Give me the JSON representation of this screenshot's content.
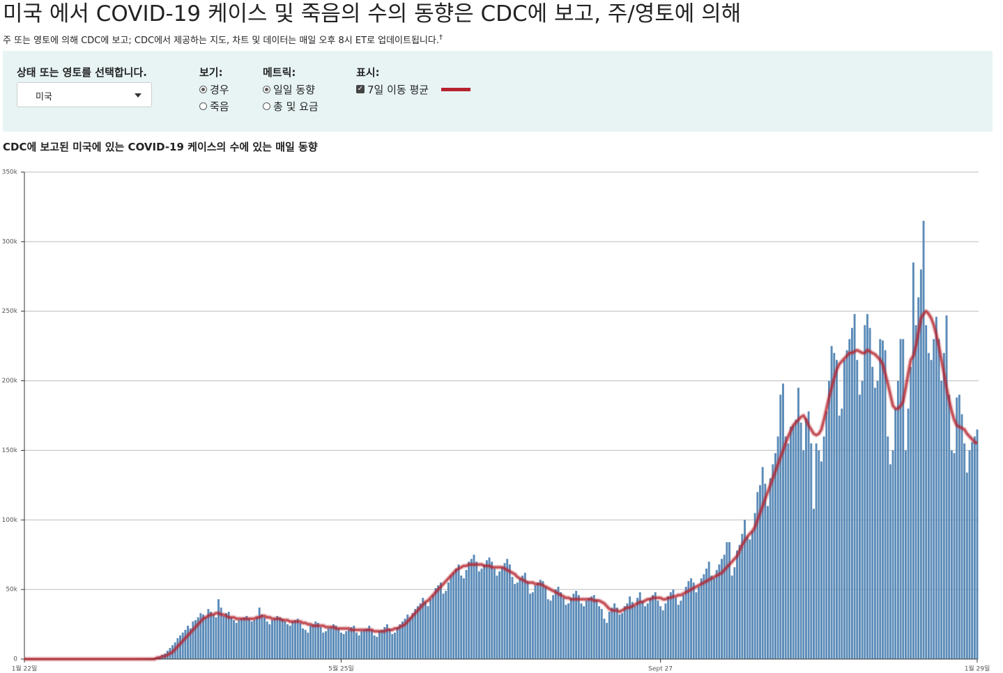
{
  "header": {
    "title": "미국 에서 COVID-19 케이스 및 죽음의 수의 동향은 CDC에 보고, 주/영토에 의해",
    "subtitle": "주 또는 영토에 의해 CDC에 보고; CDC에서 제공하는 지도, 차트 및 데이터는 매일 오후 8시 ET로 업데이트됩니다.",
    "dagger": "†"
  },
  "controls": {
    "region_label": "상태 또는 영토를 선택합니다.",
    "region_value": "미국",
    "view_label": "보기:",
    "view_options": [
      "경우",
      "죽음"
    ],
    "metric_label": "메트릭:",
    "metric_options": [
      "일일 동향",
      "총 및 요금"
    ],
    "display_label": "표시:"
  },
  "chart_data": {
    "type": "bar",
    "title": "CDC에 보고된 미국에 있는 COVID-19 케이스의 수에 있는 매일 동향",
    "color": "#5b8bb8",
    "categories": [
      "1월 22일",
      null,
      null,
      null,
      null,
      null,
      null,
      null,
      null,
      null,
      null,
      null,
      null,
      null,
      null,
      null,
      null,
      null,
      null,
      null,
      null,
      null,
      null,
      null,
      null,
      null,
      null,
      null,
      null,
      null,
      null,
      null,
      null,
      null,
      null,
      null,
      null,
      null,
      null,
      null,
      null,
      null,
      null,
      null,
      null,
      null,
      null,
      null,
      null,
      null,
      null,
      null,
      null,
      null,
      null,
      null,
      null,
      null,
      null,
      null,
      null,
      null,
      null,
      null,
      null,
      null,
      null,
      null,
      null,
      null,
      null,
      null,
      null,
      null,
      null,
      null,
      null,
      null,
      null,
      null,
      null,
      null,
      null,
      null,
      null,
      null,
      null,
      null,
      null,
      null,
      null,
      null,
      null,
      null,
      null,
      null,
      null,
      null,
      null,
      null,
      null,
      null,
      null,
      null,
      null,
      null,
      null,
      null,
      null,
      null,
      null,
      null,
      null,
      null,
      null,
      null,
      null,
      null,
      null,
      null,
      null,
      null,
      null,
      null,
      "5월 25일",
      null,
      null,
      null,
      null,
      null,
      null,
      null,
      null,
      null,
      null,
      null,
      null,
      null,
      null,
      null,
      null,
      null,
      null,
      null,
      null,
      null,
      null,
      null,
      null,
      null,
      null,
      null,
      null,
      null,
      null,
      null,
      null,
      null,
      null,
      null,
      null,
      null,
      null,
      null,
      null,
      null,
      null,
      null,
      null,
      null,
      null,
      null,
      null,
      null,
      null,
      null,
      null,
      null,
      null,
      null,
      null,
      null,
      null,
      null,
      null,
      null,
      null,
      null,
      null,
      null,
      null,
      null,
      null,
      null,
      null,
      null,
      null,
      null,
      null,
      null,
      null,
      null,
      null,
      null,
      null,
      null,
      null,
      null,
      null,
      null,
      null,
      null,
      null,
      null,
      null,
      null,
      null,
      null,
      null,
      null,
      null,
      null,
      null,
      null,
      null,
      null,
      null,
      null,
      null,
      null,
      null,
      null,
      null,
      null,
      null,
      null,
      null,
      null,
      null,
      null,
      null,
      null,
      null,
      null,
      null,
      null,
      null,
      null,
      null,
      "Sept 27",
      null,
      null,
      null,
      null,
      null,
      null,
      null,
      null,
      null,
      null,
      null,
      null,
      null,
      null,
      null,
      null,
      null,
      null,
      null,
      null,
      null,
      null,
      null,
      null,
      null,
      null,
      null,
      null,
      null,
      null,
      null,
      null,
      null,
      null,
      null,
      null,
      null,
      null,
      null,
      null,
      null,
      null,
      null,
      null,
      null,
      null,
      null,
      null,
      null,
      null,
      null,
      null,
      null,
      null,
      null,
      null,
      null,
      null,
      null,
      null,
      null,
      null,
      null,
      null,
      null,
      null,
      null,
      null,
      null,
      null,
      null,
      null,
      null,
      null,
      null,
      null,
      null,
      null,
      null,
      null,
      null,
      null,
      null,
      null,
      null,
      null,
      null,
      null,
      null,
      null,
      null,
      null,
      null,
      null,
      null,
      null,
      null,
      null,
      null,
      null,
      null,
      null,
      null,
      null,
      null,
      null,
      null,
      null,
      null,
      null,
      null,
      null,
      null,
      null,
      null,
      null,
      null,
      null,
      null,
      null,
      null,
      null,
      null,
      "1월 29일"
    ],
    "values": [
      0,
      0,
      0,
      0,
      0,
      0,
      0,
      0,
      0,
      0,
      0,
      0,
      0,
      0,
      0,
      0,
      0,
      0,
      0,
      0,
      0,
      0,
      0,
      0,
      0,
      0,
      0,
      0,
      0,
      0,
      0,
      0,
      0,
      0,
      0,
      0,
      0,
      0,
      0,
      0,
      0,
      0,
      0,
      0,
      100,
      200,
      300,
      400,
      500,
      600,
      700,
      1000,
      1500,
      2000,
      3000,
      4000,
      6000,
      8000,
      10000,
      12000,
      15000,
      17000,
      19000,
      21000,
      24000,
      22000,
      27000,
      28000,
      30000,
      33000,
      32000,
      30000,
      36000,
      34000,
      32000,
      30000,
      43000,
      37000,
      31000,
      33000,
      34000,
      30000,
      28000,
      26000,
      28000,
      29000,
      30000,
      31000,
      29000,
      27000,
      28000,
      30000,
      37000,
      32000,
      30000,
      27000,
      25000,
      28000,
      29000,
      31000,
      30000,
      29000,
      27000,
      25000,
      24000,
      27000,
      28000,
      29000,
      26000,
      22000,
      21000,
      19000,
      24000,
      25000,
      27000,
      26000,
      23000,
      19000,
      20000,
      22000,
      23000,
      25000,
      24000,
      22000,
      19000,
      18000,
      20000,
      21000,
      23000,
      24000,
      19000,
      17000,
      20000,
      21000,
      22000,
      24000,
      21000,
      17000,
      16000,
      20000,
      21000,
      23000,
      25000,
      22000,
      18000,
      19000,
      23000,
      25000,
      27000,
      29000,
      32000,
      30000,
      33000,
      36000,
      38000,
      40000,
      44000,
      41000,
      38000,
      43000,
      46000,
      51000,
      53000,
      55000,
      47000,
      49000,
      55000,
      60000,
      62000,
      65000,
      68000,
      60000,
      58000,
      64000,
      70000,
      72000,
      75000,
      70000,
      63000,
      65000,
      68000,
      71000,
      73000,
      70000,
      65000,
      60000,
      63000,
      66000,
      69000,
      72000,
      68000,
      59000,
      54000,
      55000,
      58000,
      60000,
      62000,
      56000,
      47000,
      48000,
      53000,
      55000,
      57000,
      56000,
      52000,
      43000,
      42000,
      46000,
      50000,
      52000,
      48000,
      44000,
      39000,
      40000,
      44000,
      47000,
      49000,
      46000,
      40000,
      38000,
      42000,
      44000,
      45000,
      46000,
      43000,
      38000,
      36000,
      29000,
      26000,
      34000,
      37000,
      40000,
      37000,
      32000,
      33000,
      38000,
      40000,
      45000,
      41000,
      38000,
      44000,
      48000,
      42000,
      38000,
      40000,
      44000,
      46000,
      48000,
      42000,
      38000,
      35000,
      40000,
      45000,
      48000,
      50000,
      44000,
      39000,
      42000,
      46000,
      52000,
      56000,
      58000,
      55000,
      48000,
      52000,
      58000,
      61000,
      65000,
      70000,
      60000,
      58000,
      64000,
      68000,
      72000,
      75000,
      84000,
      84000,
      60000,
      66000,
      78000,
      82000,
      90000,
      100000,
      88000,
      86000,
      92000,
      105000,
      120000,
      125000,
      138000,
      126000,
      110000,
      130000,
      140000,
      148000,
      160000,
      190000,
      198000,
      160000,
      155000,
      167000,
      168000,
      172000,
      195000,
      170000,
      150000,
      173000,
      178000,
      155000,
      108000,
      155000,
      150000,
      142000,
      160000,
      178000,
      200000,
      225000,
      220000,
      215000,
      175000,
      180000,
      215000,
      222000,
      230000,
      238000,
      248000,
      215000,
      190000,
      200000,
      240000,
      248000,
      238000,
      210000,
      195000,
      200000,
      230000,
      229000,
      222000,
      160000,
      140000,
      150000,
      180000,
      200000,
      230000,
      230000,
      150000,
      180000,
      210000,
      285000,
      240000,
      260000,
      280000,
      315000,
      240000,
      220000,
      215000,
      230000,
      246000,
      230000,
      200000,
      220000,
      247000,
      190000,
      150000,
      148000,
      188000,
      190000,
      176000,
      155000,
      134000,
      150000,
      156000,
      160000,
      165000
    ],
    "moving_average": {
      "name": "7일 이동 평균",
      "color": "#b5222d",
      "values": [
        0,
        0,
        0,
        0,
        0,
        0,
        0,
        0,
        0,
        0,
        0,
        0,
        0,
        0,
        0,
        0,
        0,
        0,
        0,
        0,
        0,
        0,
        0,
        0,
        0,
        0,
        0,
        0,
        0,
        0,
        0,
        0,
        0,
        0,
        0,
        0,
        0,
        0,
        0,
        0,
        0,
        0,
        0,
        0,
        0,
        0,
        0,
        0,
        0,
        0,
        0,
        0,
        1000,
        1000,
        2000,
        2000,
        3000,
        4000,
        5000,
        7000,
        9000,
        11000,
        13000,
        15000,
        17000,
        19000,
        21000,
        23000,
        25000,
        27000,
        29000,
        30000,
        31000,
        32000,
        32000,
        33000,
        33000,
        32000,
        32000,
        31000,
        30000,
        30000,
        30000,
        29000,
        29000,
        29000,
        29000,
        29000,
        29000,
        29000,
        29000,
        30000,
        30000,
        31000,
        31000,
        30000,
        30000,
        29000,
        29000,
        29000,
        29000,
        28000,
        28000,
        28000,
        27000,
        27000,
        27000,
        27000,
        27000,
        26000,
        26000,
        25000,
        25000,
        24000,
        24000,
        24000,
        24000,
        24000,
        23000,
        23000,
        23000,
        23000,
        22000,
        22000,
        22000,
        22000,
        22000,
        22000,
        21000,
        21000,
        21000,
        21000,
        21000,
        21000,
        21000,
        21000,
        21000,
        20000,
        20000,
        20000,
        20000,
        20000,
        21000,
        21000,
        21000,
        22000,
        22000,
        23000,
        24000,
        25000,
        27000,
        29000,
        31000,
        33000,
        35000,
        37000,
        39000,
        41000,
        42000,
        44000,
        46000,
        48000,
        50000,
        52000,
        54000,
        56000,
        58000,
        60000,
        62000,
        64000,
        65000,
        66000,
        67000,
        67000,
        68000,
        68000,
        68000,
        68000,
        68000,
        68000,
        67000,
        67000,
        67000,
        66000,
        66000,
        66000,
        66000,
        66000,
        65000,
        64000,
        63000,
        62000,
        61000,
        59000,
        58000,
        57000,
        56000,
        55000,
        55000,
        55000,
        54000,
        54000,
        54000,
        53000,
        52000,
        51000,
        50000,
        49000,
        48000,
        47000,
        46000,
        45000,
        44000,
        44000,
        43000,
        43000,
        43000,
        43000,
        43000,
        43000,
        43000,
        43000,
        43000,
        42000,
        42000,
        42000,
        41000,
        40000,
        38000,
        36000,
        35000,
        35000,
        35000,
        34000,
        35000,
        36000,
        37000,
        37000,
        38000,
        39000,
        40000,
        41000,
        41000,
        42000,
        43000,
        43000,
        44000,
        44000,
        44000,
        44000,
        43000,
        43000,
        44000,
        44000,
        45000,
        45000,
        46000,
        46000,
        47000,
        48000,
        49000,
        50000,
        51000,
        52000,
        53000,
        54000,
        55000,
        56000,
        57000,
        58000,
        59000,
        60000,
        61000,
        62000,
        64000,
        66000,
        68000,
        70000,
        72000,
        74000,
        78000,
        82000,
        85000,
        88000,
        90000,
        92000,
        95000,
        100000,
        105000,
        110000,
        115000,
        120000,
        125000,
        130000,
        135000,
        140000,
        145000,
        150000,
        155000,
        160000,
        164000,
        168000,
        170000,
        172000,
        174000,
        175000,
        172000,
        168000,
        165000,
        162000,
        161000,
        162000,
        165000,
        172000,
        180000,
        188000,
        195000,
        202000,
        208000,
        212000,
        214000,
        216000,
        218000,
        220000,
        220000,
        221000,
        222000,
        221000,
        220000,
        220000,
        222000,
        221000,
        220000,
        219000,
        217000,
        215000,
        212000,
        205000,
        198000,
        190000,
        182000,
        180000,
        180000,
        182000,
        185000,
        195000,
        205000,
        215000,
        218000,
        225000,
        235000,
        245000,
        248000,
        250000,
        248000,
        245000,
        240000,
        233000,
        225000,
        215000,
        205000,
        195000,
        186000,
        178000,
        172000,
        168000,
        167000,
        166000,
        165000,
        162000,
        160000,
        158000,
        156000,
        155000
      ]
    },
    "ylim": [
      0,
      350000
    ],
    "yticks": [
      0,
      {
        "value": 50000,
        "label": "50k"
      },
      {
        "value": 100000,
        "label": "100k"
      },
      {
        "value": 150000,
        "label": "150k"
      },
      {
        "value": 200000,
        "label": "200k"
      },
      {
        "value": 250000,
        "label": "250k"
      },
      {
        "value": 300000,
        "label": "300k"
      },
      {
        "value": 350000,
        "label": "350k"
      }
    ],
    "grid": true
  }
}
